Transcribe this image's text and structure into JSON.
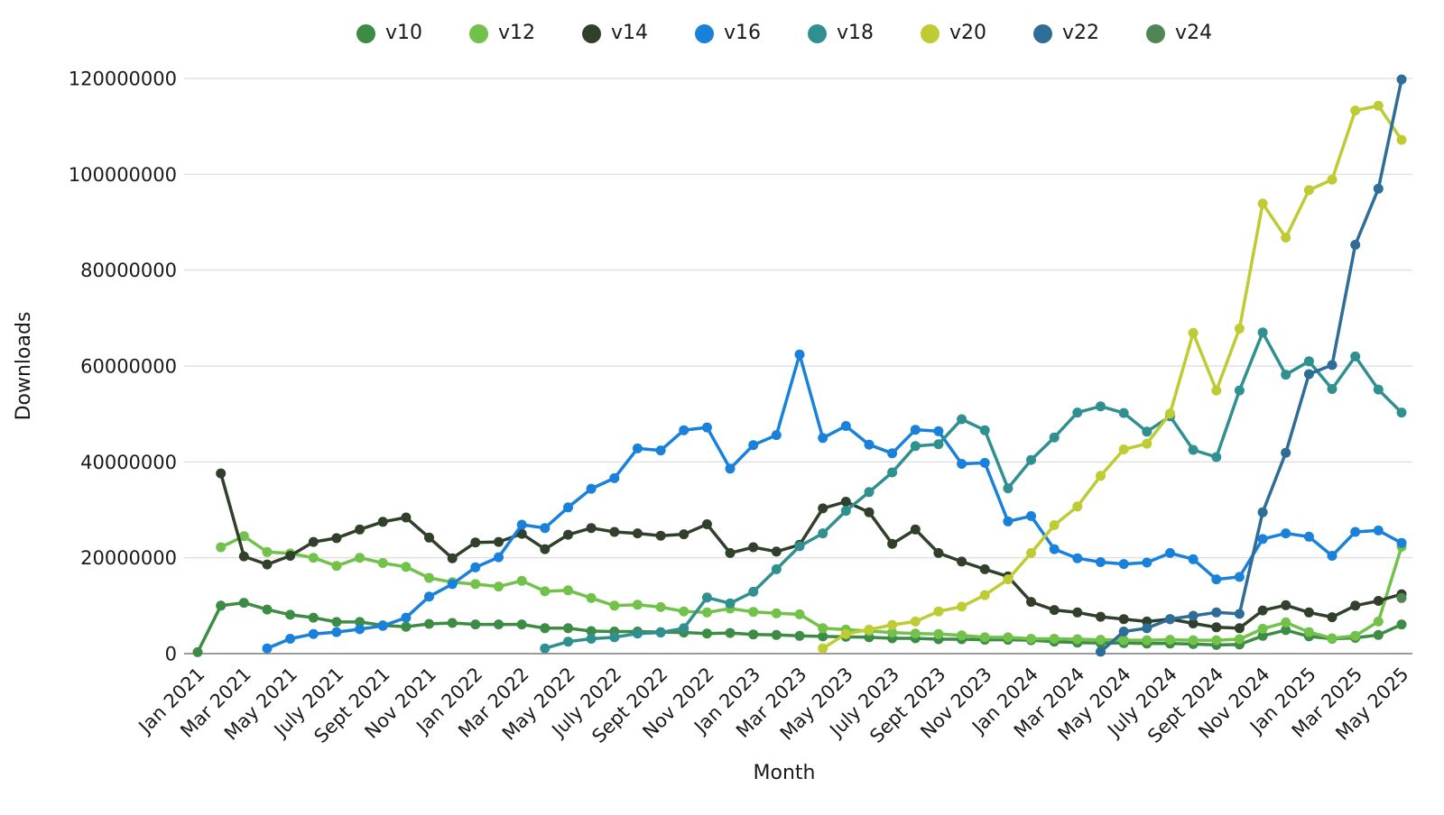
{
  "chart_data": {
    "type": "line",
    "title": "",
    "xlabel": "Month",
    "ylabel": "Downloads",
    "legend_position": "top-center",
    "grid": "horizontal",
    "x_tick_every": 2,
    "x_tick_rotation_deg": -45,
    "ylim": [
      0,
      120000000
    ],
    "y_unit": "downloads",
    "values_unit": "millions",
    "y_ticks": [
      {
        "value": 0,
        "label": "0"
      },
      {
        "value": 20000000,
        "label": "20000000"
      },
      {
        "value": 40000000,
        "label": "40000000"
      },
      {
        "value": 60000000,
        "label": "60000000"
      },
      {
        "value": 80000000,
        "label": "80000000"
      },
      {
        "value": 100000000,
        "label": "100000000"
      },
      {
        "value": 120000000,
        "label": "120000000"
      }
    ],
    "months": [
      "Jan 2021",
      "Feb 2021",
      "Mar 2021",
      "Apr 2021",
      "May 2021",
      "June 2021",
      "July 2021",
      "Aug 2021",
      "Sept 2021",
      "Oct 2021",
      "Nov 2021",
      "Dec 2021",
      "Jan 2022",
      "Feb 2022",
      "Mar 2022",
      "Apr 2022",
      "May 2022",
      "June 2022",
      "July 2022",
      "Aug 2022",
      "Sept 2022",
      "Oct 2022",
      "Nov 2022",
      "Dec 2022",
      "Jan 2023",
      "Feb 2023",
      "Mar 2023",
      "Apr 2023",
      "May 2023",
      "June 2023",
      "July 2023",
      "Aug 2023",
      "Sept 2023",
      "Oct 2023",
      "Nov 2023",
      "Dec 2023",
      "Jan 2024",
      "Feb 2024",
      "Mar 2024",
      "Apr 2024",
      "May 2024",
      "June 2024",
      "July 2024",
      "Aug 2024",
      "Sept 2024",
      "Oct 2024",
      "Nov 2024",
      "Dec 2024",
      "Jan 2025",
      "Feb 2025",
      "Mar 2025",
      "Apr 2025",
      "May 2025"
    ],
    "series": [
      {
        "name": "v10",
        "color": "#3D8C45",
        "values_millions": [
          0.3,
          10.0,
          10.6,
          9.2,
          8.1,
          7.5,
          6.6,
          6.6,
          5.9,
          5.6,
          6.2,
          6.4,
          6.1,
          6.1,
          6.1,
          5.3,
          5.3,
          4.7,
          4.6,
          4.6,
          4.5,
          4.4,
          4.2,
          4.3,
          4.0,
          3.9,
          3.7,
          3.6,
          3.5,
          3.4,
          3.2,
          3.2,
          3.0,
          3.0,
          2.9,
          2.9,
          2.8,
          2.5,
          2.3,
          2.2,
          2.2,
          2.1,
          2.1,
          2.0,
          1.8,
          1.9,
          3.7,
          4.9,
          3.6,
          3.1,
          3.3,
          3.9,
          6.1
        ]
      },
      {
        "name": "v12",
        "color": "#72C14A",
        "values_millions": [
          null,
          22.2,
          24.5,
          21.2,
          20.9,
          20.0,
          18.3,
          20.0,
          18.9,
          18.1,
          15.8,
          14.9,
          14.5,
          14.0,
          15.2,
          13.0,
          13.2,
          11.6,
          10.0,
          10.2,
          9.7,
          8.8,
          8.6,
          9.4,
          8.7,
          8.4,
          8.2,
          5.3,
          5.0,
          4.7,
          4.4,
          4.2,
          4.1,
          3.8,
          3.4,
          3.4,
          3.1,
          3.1,
          3.0,
          2.9,
          2.8,
          2.8,
          2.9,
          2.8,
          2.8,
          3.0,
          5.2,
          6.5,
          4.5,
          3.2,
          3.7,
          6.7,
          22.3
        ]
      },
      {
        "name": "v14",
        "color": "#31402B",
        "values_millions": [
          null,
          37.6,
          20.3,
          18.6,
          20.4,
          23.3,
          24.1,
          25.9,
          27.5,
          28.4,
          24.2,
          19.9,
          23.2,
          23.3,
          25.0,
          21.8,
          24.8,
          26.2,
          25.4,
          25.1,
          24.6,
          24.9,
          27.0,
          21.0,
          22.2,
          21.3,
          22.7,
          30.3,
          31.7,
          29.5,
          22.9,
          25.9,
          21.0,
          19.2,
          17.6,
          16.1,
          10.8,
          9.1,
          8.6,
          7.7,
          7.2,
          6.7,
          7.2,
          6.3,
          5.5,
          5.3,
          9.0,
          10.1,
          8.6,
          7.6,
          10.0,
          11.0,
          12.4
        ]
      },
      {
        "name": "v16",
        "color": "#1981D9",
        "values_millions": [
          null,
          null,
          null,
          1.1,
          3.1,
          4.1,
          4.5,
          5.1,
          5.8,
          7.5,
          11.9,
          14.5,
          18.0,
          20.1,
          26.9,
          26.2,
          30.5,
          34.4,
          36.6,
          42.8,
          42.4,
          46.6,
          47.2,
          38.6,
          43.5,
          45.6,
          62.4,
          45.0,
          47.5,
          43.6,
          41.8,
          46.7,
          46.4,
          39.6,
          39.8,
          27.6,
          28.7,
          21.8,
          19.9,
          19.1,
          18.7,
          19.0,
          21.0,
          19.7,
          15.5,
          16.0,
          23.9,
          25.1,
          24.4,
          20.4,
          25.4,
          25.7,
          23.1
        ]
      },
      {
        "name": "v18",
        "color": "#2F908F",
        "values_millions": [
          null,
          null,
          null,
          null,
          null,
          null,
          null,
          null,
          null,
          null,
          null,
          null,
          null,
          null,
          null,
          1.1,
          2.5,
          3.1,
          3.4,
          4.2,
          4.4,
          5.3,
          11.7,
          10.5,
          12.9,
          17.6,
          22.4,
          25.1,
          29.8,
          33.7,
          37.8,
          43.3,
          43.7,
          48.9,
          46.6,
          34.5,
          40.4,
          45.1,
          50.3,
          51.6,
          50.2,
          46.3,
          49.5,
          42.5,
          41.0,
          54.9,
          67.0,
          58.2,
          61.0,
          55.2,
          62.0,
          55.1,
          50.3
        ]
      },
      {
        "name": "v20",
        "color": "#BECB33",
        "values_millions": [
          null,
          null,
          null,
          null,
          null,
          null,
          null,
          null,
          null,
          null,
          null,
          null,
          null,
          null,
          null,
          null,
          null,
          null,
          null,
          null,
          null,
          null,
          null,
          null,
          null,
          null,
          null,
          1.1,
          4.1,
          5.0,
          6.0,
          6.7,
          8.8,
          9.8,
          12.2,
          15.5,
          21.0,
          26.8,
          30.7,
          37.1,
          42.6,
          43.8,
          50.1,
          66.9,
          54.9,
          67.8,
          93.9,
          86.8,
          96.7,
          98.9,
          113.3,
          114.3,
          107.2
        ]
      },
      {
        "name": "v22",
        "color": "#2E6D97",
        "values_millions": [
          null,
          null,
          null,
          null,
          null,
          null,
          null,
          null,
          null,
          null,
          null,
          null,
          null,
          null,
          null,
          null,
          null,
          null,
          null,
          null,
          null,
          null,
          null,
          null,
          null,
          null,
          null,
          null,
          null,
          null,
          null,
          null,
          null,
          null,
          null,
          null,
          null,
          null,
          null,
          0.4,
          4.6,
          5.3,
          7.2,
          7.9,
          8.6,
          8.3,
          29.5,
          41.9,
          58.3,
          60.2,
          85.3,
          97.0,
          119.8
        ]
      },
      {
        "name": "v24",
        "color": "#4F8653",
        "values_millions": [
          null,
          null,
          null,
          null,
          null,
          null,
          null,
          null,
          null,
          null,
          null,
          null,
          null,
          null,
          null,
          null,
          null,
          null,
          null,
          null,
          null,
          null,
          null,
          null,
          null,
          null,
          null,
          null,
          null,
          null,
          null,
          null,
          null,
          null,
          null,
          null,
          null,
          null,
          null,
          null,
          null,
          null,
          null,
          null,
          null,
          null,
          null,
          null,
          null,
          null,
          null,
          null,
          11.6
        ]
      }
    ]
  }
}
